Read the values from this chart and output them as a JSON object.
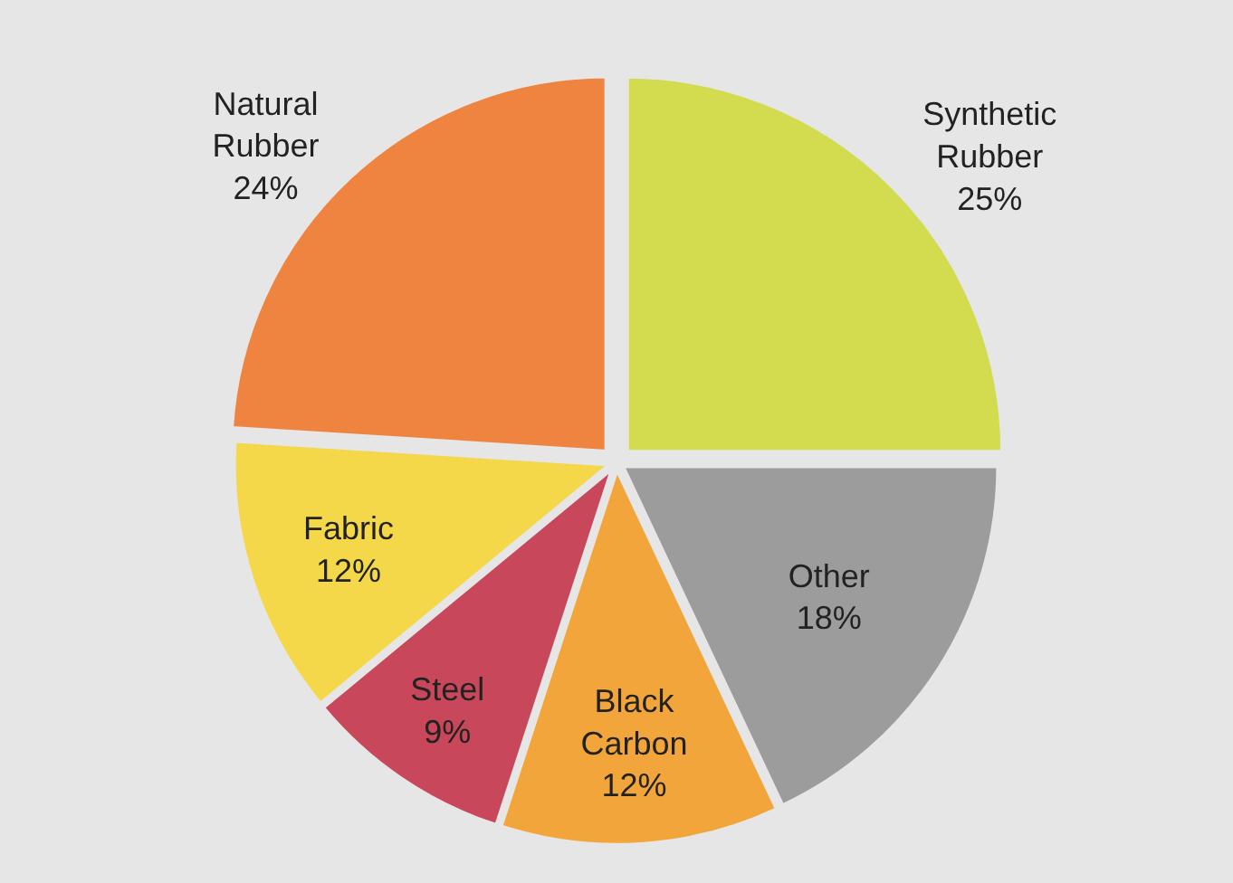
{
  "chart_data": {
    "type": "pie",
    "categories": [
      "Synthetic Rubber",
      "Other",
      "Black Carbon",
      "Steel",
      "Fabric",
      "Natural Rubber"
    ],
    "values": [
      25,
      18,
      12,
      9,
      12,
      24
    ],
    "value_labels": [
      "25%",
      "18%",
      "12%",
      "9%",
      "12%",
      "24%"
    ],
    "colors": [
      "#d2dc4e",
      "#9c9c9c",
      "#f2a53a",
      "#c8475a",
      "#f4d84a",
      "#ee8440"
    ]
  }
}
